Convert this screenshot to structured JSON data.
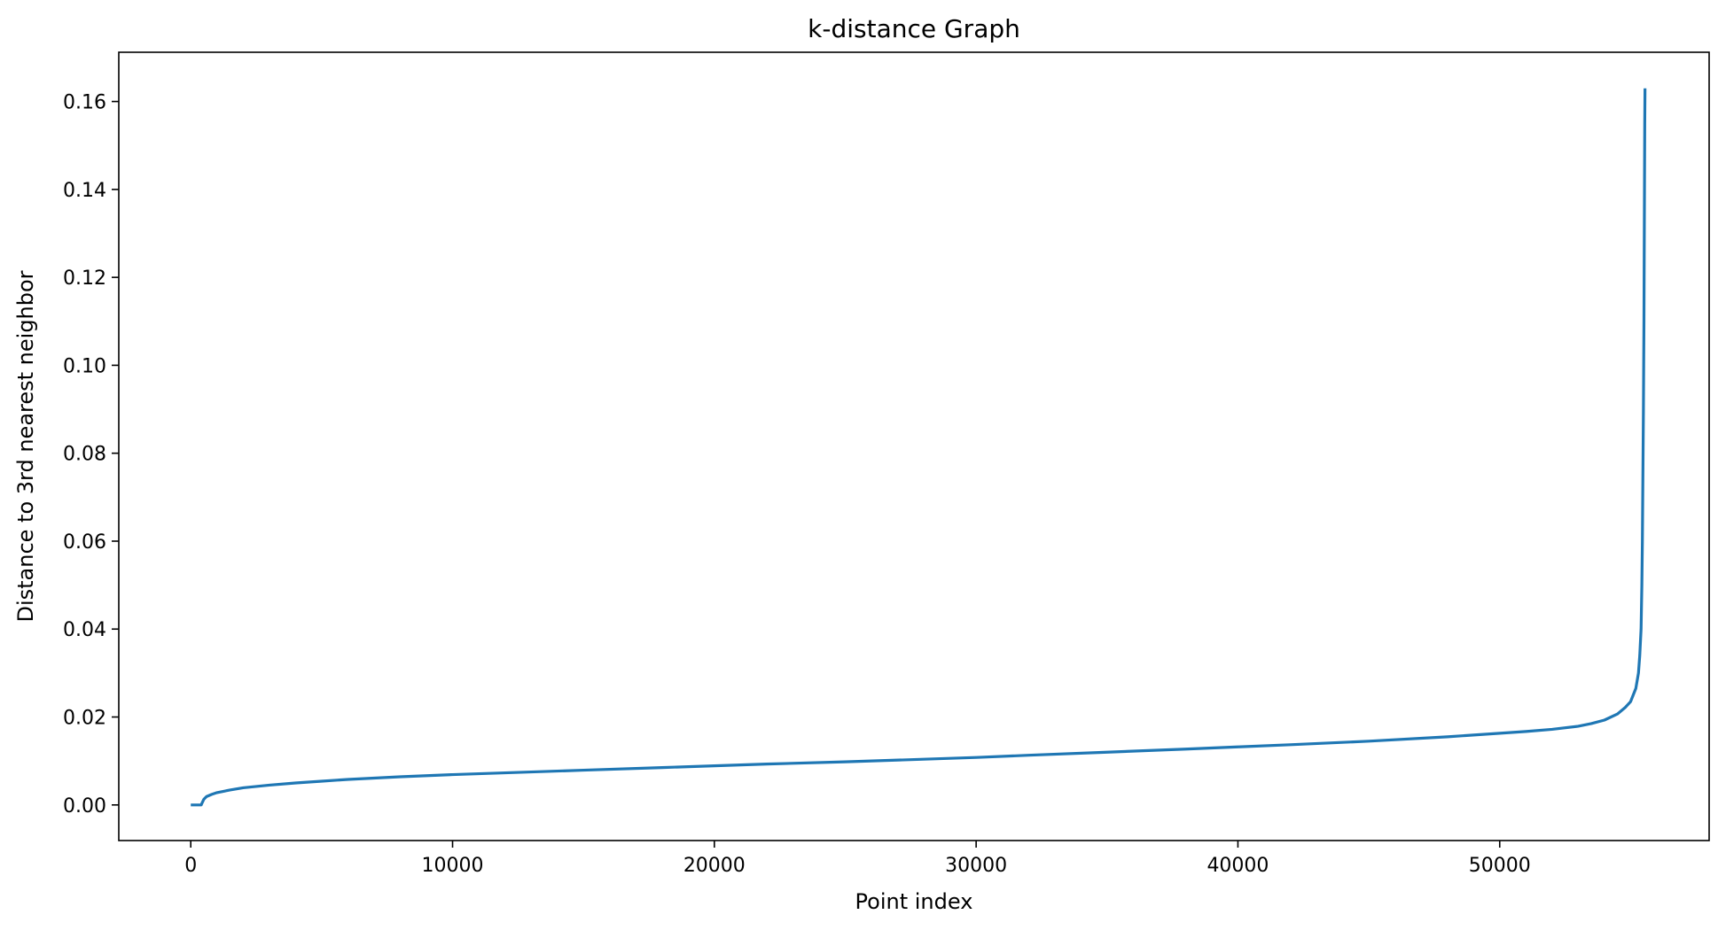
{
  "chart_data": {
    "type": "line",
    "title": "k-distance Graph",
    "xlabel": "Point index",
    "ylabel": "Distance to 3rd nearest neighbor",
    "xlim": [
      -2750,
      58000
    ],
    "ylim": [
      -0.0081,
      0.1712
    ],
    "x_ticks": [
      0,
      10000,
      20000,
      30000,
      40000,
      50000
    ],
    "x_tick_labels": [
      "0",
      "10000",
      "20000",
      "30000",
      "40000",
      "50000"
    ],
    "y_ticks": [
      0.0,
      0.02,
      0.04,
      0.06,
      0.08,
      0.1,
      0.12,
      0.14,
      0.16
    ],
    "y_tick_labels": [
      "0.00",
      "0.02",
      "0.04",
      "0.06",
      "0.08",
      "0.10",
      "0.12",
      "0.14",
      "0.16"
    ],
    "grid": false,
    "legend": false,
    "color": "#1f77b4",
    "series": [
      {
        "x": [
          0,
          200,
          400,
          420,
          500,
          600,
          800,
          1000,
          1500,
          2000,
          2500,
          3000,
          4000,
          5000,
          6000,
          7000,
          8000,
          10000,
          12000,
          15000,
          18000,
          20000,
          22000,
          25000,
          28000,
          30000,
          32000,
          35000,
          38000,
          40000,
          42000,
          45000,
          48000,
          50000,
          51000,
          52000,
          53000,
          53500,
          54000,
          54500,
          54800,
          55000,
          55200,
          55300,
          55350,
          55400,
          55430,
          55450,
          55470,
          55490,
          55500,
          55510,
          55520,
          55530,
          55540,
          55550
        ],
        "y": [
          0.0,
          0.0,
          0.0,
          0.0003,
          0.0013,
          0.0019,
          0.0024,
          0.0028,
          0.0034,
          0.0039,
          0.0042,
          0.0045,
          0.005,
          0.0054,
          0.0058,
          0.0061,
          0.0064,
          0.0069,
          0.0073,
          0.0079,
          0.0085,
          0.0089,
          0.0093,
          0.0098,
          0.0104,
          0.0108,
          0.0113,
          0.012,
          0.0127,
          0.0132,
          0.0137,
          0.0145,
          0.0155,
          0.0163,
          0.0167,
          0.0172,
          0.0179,
          0.0185,
          0.0193,
          0.0207,
          0.0222,
          0.0235,
          0.0265,
          0.03,
          0.034,
          0.04,
          0.05,
          0.06,
          0.075,
          0.09,
          0.1,
          0.11,
          0.125,
          0.14,
          0.155,
          0.163
        ]
      }
    ]
  }
}
